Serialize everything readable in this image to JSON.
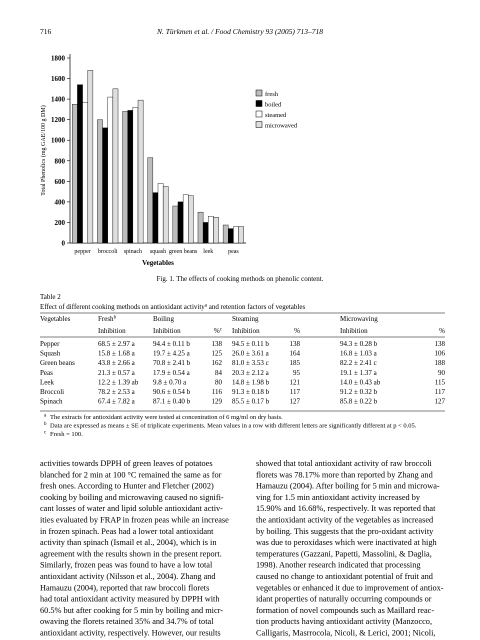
{
  "header": {
    "page": "716",
    "running": "N. Türkmen et al. / Food Chemistry 93 (2005) 713–718"
  },
  "chart_data": {
    "type": "bar",
    "ylabel": "Total Phenolics (mg GAE/100 g DM)",
    "xlabel": "Vegetables",
    "categories": [
      "pepper",
      "broccoli",
      "spinach",
      "squash",
      "green beans",
      "leek",
      "peas"
    ],
    "series": [
      {
        "name": "fresh",
        "color": "#bdbdbd",
        "values": [
          1350,
          1200,
          1280,
          830,
          360,
          300,
          175
        ]
      },
      {
        "name": "boiled",
        "color": "#000000",
        "values": [
          1540,
          1120,
          1290,
          490,
          400,
          200,
          140
        ]
      },
      {
        "name": "steamed",
        "color": "#ffffff",
        "values": [
          1370,
          1420,
          1320,
          580,
          470,
          260,
          160
        ]
      },
      {
        "name": "microwaved",
        "color": "#dedede",
        "values": [
          1680,
          1500,
          1390,
          550,
          460,
          250,
          160
        ]
      }
    ],
    "ylim": [
      0,
      1800
    ],
    "yticks": [
      0,
      200,
      400,
      600,
      800,
      1000,
      1200,
      1400,
      1600,
      1800
    ]
  },
  "figure_caption": "Fig. 1. The effects of cooking methods on phenolic content.",
  "table": {
    "label": "Table 2",
    "title_parts": [
      "Effect of different cooking methods on antioxidant activity",
      "a",
      " and retention factors of vegetables"
    ],
    "groups": [
      {
        "text": "Vegetables"
      },
      {
        "text": "Fresh",
        "sup": "b"
      },
      {
        "text": "Boiling"
      },
      {
        "text": "Steaming"
      },
      {
        "text": "Microwaving"
      }
    ],
    "subheads": [
      "Inhibition",
      "Inhibition",
      "%",
      "Inhibition",
      "%",
      "Inhibition",
      "%"
    ],
    "pct_sup": "c",
    "rows": [
      [
        "Pepper",
        "68.5 ± 2.97 a",
        "94.4 ± 0.11 b",
        "138",
        "94.5 ± 0.11 b",
        "138",
        "94.3 ± 0.28 b",
        "138"
      ],
      [
        "Squash",
        "15.8 ± 1.68 a",
        "19.7 ± 4.25 a",
        "125",
        "26.0 ± 3.61 a",
        "164",
        "16.8 ± 1.03 a",
        "106"
      ],
      [
        "Green beans",
        "43.8 ± 2.66 a",
        "70.8 ± 2.41 b",
        "162",
        "81.0 ± 3.53 c",
        "185",
        "82.2 ± 2.41 c",
        "188"
      ],
      [
        "Peas",
        "21.3 ± 0.57 a",
        "17.9 ± 0.54 a",
        "84",
        "20.3 ± 2.12 a",
        "95",
        "19.1 ± 1.37 a",
        "90"
      ],
      [
        "Leek",
        "12.2 ± 1.39 ab",
        "9.8 ± 0.70 a",
        "80",
        "14.8 ± 1.98 b",
        "121",
        "14.0 ± 0.43 ab",
        "115"
      ],
      [
        "Broccoli",
        "78.2 ± 2.53 a",
        "90.6 ± 0.54 b",
        "116",
        "91.3 ± 0.18 b",
        "117",
        "91.2 ± 0.32 b",
        "117"
      ],
      [
        "Spinach",
        "67.4 ± 7.82 a",
        "87.1 ± 0.40 b",
        "129",
        "85.5 ± 0.17 b",
        "127",
        "85.8 ± 0.22 b",
        "127"
      ]
    ],
    "footnotes": [
      {
        "mark": "a",
        "text": "The extracts for antioxidant activity were tested at concentration of 6 mg/ml on dry basis."
      },
      {
        "mark": "b",
        "text": "Data are expressed as means ± SE of triplicate experiments. Mean values in a row with different letters are significantly different at p < 0.05."
      },
      {
        "mark": "c",
        "text": "Fresh = 100."
      }
    ]
  },
  "body": {
    "left": [
      "activities towards DPPH of green leaves of potatoes",
      "blanched for 2 min at 100 °C remained the same as for",
      "fresh ones. According to Hunter and Fletcher (2002)",
      "cooking by boiling and microwaving caused no signifi-",
      "cant losses of water and lipid soluble antioxidant activ-",
      "ities evaluated by FRAP in frozen peas while an increase",
      "in frozen spinach. Peas had a lower total antioxidant",
      "activity than spinach (Ismail et al., 2004), which is in",
      "agreement with the results shown in the present report.",
      "Similarly, frozen peas was found to have a low total",
      "antioxidant activity (Nilsson et al., 2004). Zhang and",
      "Hamauzu (2004), reported that raw broccoli florets",
      "had total antioxidant activity measured by DPPH with",
      "60.5% but after cooking for 5 min by boiling and micr-",
      "owaving the florets retained 35% and 34.7% of total",
      "antioxidant activity, respectively. However, our results"
    ],
    "right": [
      "showed that total antioxidant activity of raw broccoli",
      "florets was 78.17% more than reported by Zhang and",
      "Hamauzu (2004). After boiling for 5 min and microwa-",
      "ving for 1.5 min antioxidant activity increased by",
      "15.90% and 16.68%, respectively. It was reported that",
      "the antioxidant activity of the vegetables as increased",
      "by boiling. This suggests that the pro-oxidant activity",
      "was due to peroxidases which were inactivated at high",
      "temperatures (Gazzani, Papetti, Massolini, & Daglia,",
      "1998). Another research indicated that processing",
      "caused no change to antioxidant potential of fruit and",
      "vegetables or enhanced it due to improvement of antiox-",
      "idant properties of naturally occurring compounds or",
      "formation of novel compounds such as Maillard reac-",
      "tion products having antioxidant activity (Manzocco,",
      "Calligaris, Masrrocola, Nicoli, & Lerici, 2001; Nicoli,"
    ]
  }
}
